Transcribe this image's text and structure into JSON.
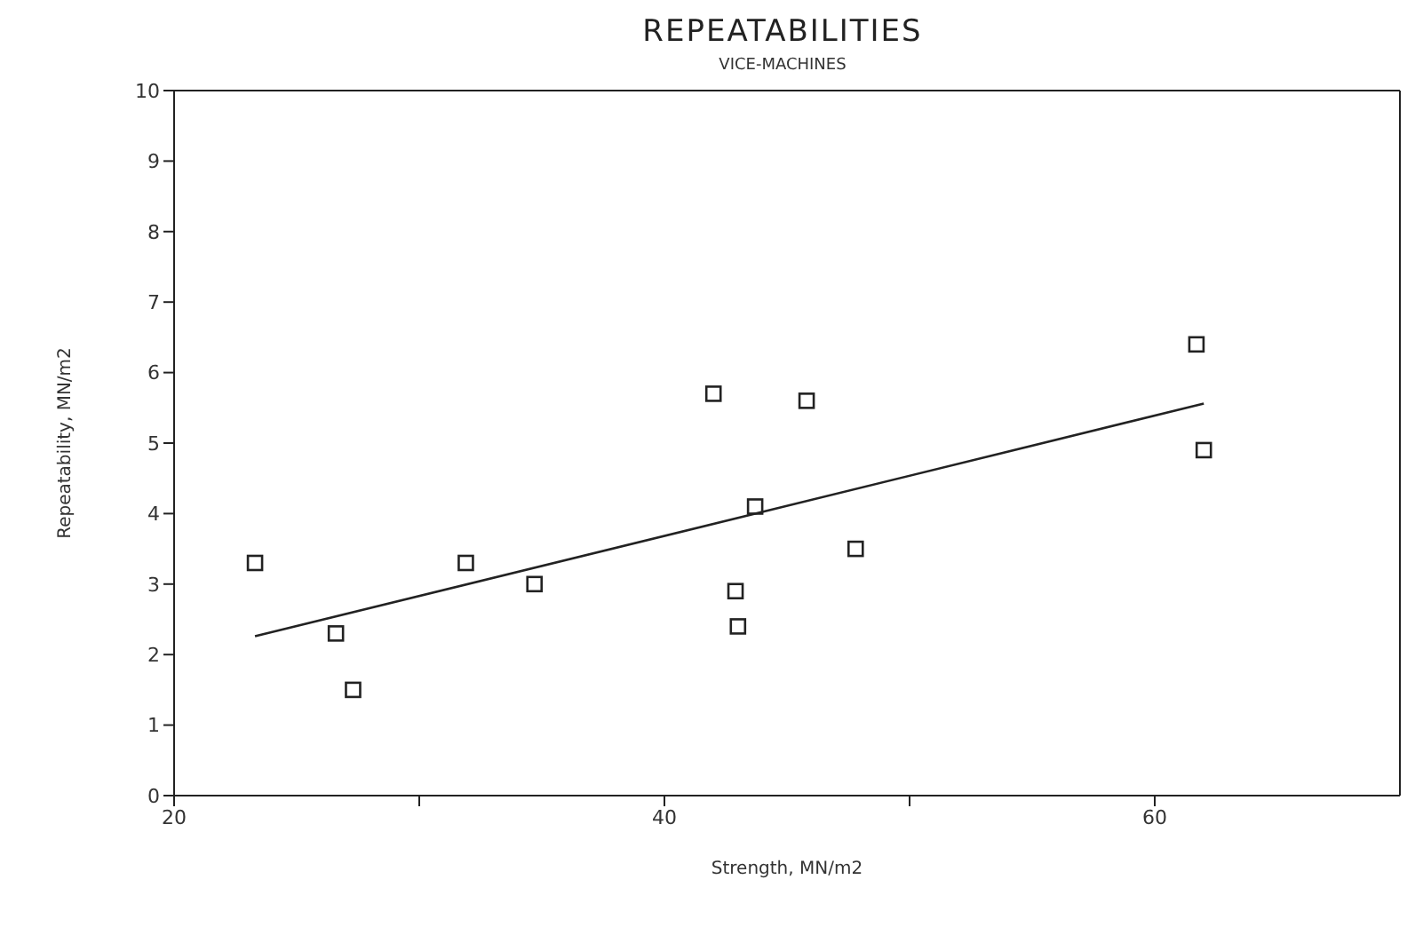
{
  "chart_data": {
    "type": "scatter",
    "title": "REPEATABILITIES",
    "subtitle": "VICE-MACHINES",
    "xlabel": "Strength, MN/m2",
    "ylabel": "Repeatability, MN/m2",
    "xlim": [
      20,
      70
    ],
    "xticks": [
      20,
      {
        "value": 30,
        "label": null
      },
      40,
      {
        "value": 50,
        "label": null
      },
      60
    ],
    "ylim": [
      0,
      10
    ],
    "yticks": [
      0,
      1,
      2,
      3,
      4,
      5,
      6,
      7,
      8,
      9,
      10
    ],
    "marker": "square",
    "series": [
      {
        "color": "#222222",
        "x": [
          23.3,
          26.6,
          27.3,
          31.9,
          34.7,
          42.0,
          43.7,
          42.9,
          43.0,
          45.8,
          47.8,
          61.7,
          62.0
        ],
        "values": [
          3.3,
          2.3,
          1.5,
          3.3,
          3.0,
          5.7,
          4.1,
          2.9,
          2.4,
          5.6,
          3.5,
          6.4,
          4.9
        ]
      },
      {
        "type": "line",
        "color": "#222222",
        "x": [
          23.3,
          62.0
        ],
        "values": [
          2.26,
          5.56
        ],
        "marker": "none"
      }
    ]
  }
}
